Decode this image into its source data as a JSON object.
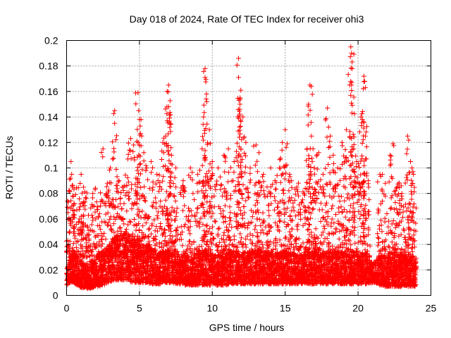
{
  "chart_data": {
    "type": "scatter",
    "title": "Day 018 of 2024, Rate Of TEC Index for receiver ohi3",
    "xlabel": "GPS time / hours",
    "ylabel": "ROTI / TECUs",
    "xlim": [
      0,
      25
    ],
    "ylim": [
      0,
      0.2
    ],
    "xticks": [
      "0",
      "5",
      "10",
      "15",
      "20",
      "25"
    ],
    "yticks": [
      "0",
      "0.02",
      "0.04",
      "0.06",
      "0.08",
      "0.1",
      "0.12",
      "0.14",
      "0.16",
      "0.18",
      "0.2"
    ],
    "grid": true,
    "marker": "+",
    "color": "#ff0000",
    "series": [
      {
        "points": [
          [
            0.1,
            0.065
          ],
          [
            0.2,
            0.05
          ],
          [
            0.3,
            0.105
          ],
          [
            0.35,
            0.095
          ],
          [
            0.4,
            0.085
          ],
          [
            0.45,
            0.078
          ],
          [
            0.9,
            0.06
          ],
          [
            1.0,
            0.095
          ],
          [
            1.1,
            0.072
          ],
          [
            1.3,
            0.055
          ],
          [
            1.8,
            0.08
          ],
          [
            2.0,
            0.06
          ],
          [
            2.5,
            0.115
          ],
          [
            2.8,
            0.088
          ],
          [
            3.0,
            0.1
          ],
          [
            3.3,
            0.145
          ],
          [
            3.3,
            0.135
          ],
          [
            3.6,
            0.09
          ],
          [
            3.9,
            0.085
          ],
          [
            4.2,
            0.107
          ],
          [
            4.4,
            0.123
          ],
          [
            4.6,
            0.118
          ],
          [
            4.9,
            0.159
          ],
          [
            4.95,
            0.145
          ],
          [
            5.0,
            0.138
          ],
          [
            5.3,
            0.112
          ],
          [
            5.5,
            0.1
          ],
          [
            5.8,
            0.105
          ],
          [
            6.2,
            0.095
          ],
          [
            6.6,
            0.12
          ],
          [
            6.8,
            0.125
          ],
          [
            6.9,
            0.16
          ],
          [
            7.0,
            0.165
          ],
          [
            7.0,
            0.148
          ],
          [
            7.1,
            0.135
          ],
          [
            7.2,
            0.11
          ],
          [
            7.5,
            0.1
          ],
          [
            8.0,
            0.09
          ],
          [
            8.5,
            0.1
          ],
          [
            9.0,
            0.095
          ],
          [
            9.3,
            0.115
          ],
          [
            9.4,
            0.14
          ],
          [
            9.5,
            0.178
          ],
          [
            9.5,
            0.171
          ],
          [
            9.6,
            0.158
          ],
          [
            9.8,
            0.13
          ],
          [
            10.0,
            0.105
          ],
          [
            10.4,
            0.1
          ],
          [
            10.8,
            0.11
          ],
          [
            11.1,
            0.115
          ],
          [
            11.5,
            0.105
          ],
          [
            11.8,
            0.186
          ],
          [
            11.8,
            0.171
          ],
          [
            11.9,
            0.155
          ],
          [
            11.9,
            0.15
          ],
          [
            12.1,
            0.14
          ],
          [
            12.3,
            0.12
          ],
          [
            12.6,
            0.1
          ],
          [
            13.0,
            0.118
          ],
          [
            13.2,
            0.112
          ],
          [
            13.5,
            0.095
          ],
          [
            14.0,
            0.1
          ],
          [
            14.3,
            0.09
          ],
          [
            14.6,
            0.1
          ],
          [
            14.8,
            0.12
          ],
          [
            15.0,
            0.13
          ],
          [
            15.3,
            0.095
          ],
          [
            15.8,
            0.085
          ],
          [
            16.2,
            0.075
          ],
          [
            16.5,
            0.115
          ],
          [
            16.6,
            0.15
          ],
          [
            16.7,
            0.165
          ],
          [
            16.8,
            0.125
          ],
          [
            17.0,
            0.1
          ],
          [
            17.3,
            0.112
          ],
          [
            17.6,
            0.095
          ],
          [
            17.9,
            0.147
          ],
          [
            18.1,
            0.125
          ],
          [
            18.3,
            0.11
          ],
          [
            18.6,
            0.1
          ],
          [
            18.9,
            0.12
          ],
          [
            19.2,
            0.13
          ],
          [
            19.5,
            0.195
          ],
          [
            19.55,
            0.19
          ],
          [
            19.6,
            0.178
          ],
          [
            19.7,
            0.115
          ],
          [
            19.9,
            0.105
          ],
          [
            20.2,
            0.14
          ],
          [
            20.3,
            0.138
          ],
          [
            20.4,
            0.172
          ],
          [
            20.45,
            0.168
          ],
          [
            20.5,
            0.125
          ],
          [
            20.7,
            0.09
          ],
          [
            21.5,
            0.095
          ],
          [
            22.2,
            0.11
          ],
          [
            22.4,
            0.119
          ],
          [
            22.7,
            0.085
          ],
          [
            23.0,
            0.08
          ],
          [
            23.4,
            0.125
          ],
          [
            23.6,
            0.105
          ],
          [
            23.7,
            0.1
          ],
          [
            23.8,
            0.095
          ]
        ]
      }
    ],
    "bands": [
      [
        0.0,
        0.008,
        0.02
      ],
      [
        0.25,
        0.01,
        0.03
      ],
      [
        0.5,
        0.01,
        0.035
      ],
      [
        0.75,
        0.008,
        0.03
      ],
      [
        1.0,
        0.006,
        0.028
      ],
      [
        1.25,
        0.006,
        0.025
      ],
      [
        1.5,
        0.005,
        0.026
      ],
      [
        1.75,
        0.006,
        0.028
      ],
      [
        2.0,
        0.006,
        0.03
      ],
      [
        2.25,
        0.007,
        0.032
      ],
      [
        2.5,
        0.008,
        0.035
      ],
      [
        2.75,
        0.009,
        0.038
      ],
      [
        3.0,
        0.01,
        0.04
      ],
      [
        3.25,
        0.012,
        0.045
      ],
      [
        3.5,
        0.012,
        0.048
      ],
      [
        3.75,
        0.012,
        0.05
      ],
      [
        4.0,
        0.012,
        0.05
      ],
      [
        4.25,
        0.012,
        0.048
      ],
      [
        4.5,
        0.01,
        0.046
      ],
      [
        4.75,
        0.01,
        0.045
      ],
      [
        5.0,
        0.01,
        0.044
      ],
      [
        5.25,
        0.01,
        0.042
      ],
      [
        5.5,
        0.01,
        0.04
      ],
      [
        5.75,
        0.009,
        0.038
      ],
      [
        6.0,
        0.009,
        0.036
      ],
      [
        6.25,
        0.009,
        0.035
      ],
      [
        6.5,
        0.009,
        0.035
      ],
      [
        6.75,
        0.01,
        0.036
      ],
      [
        7.0,
        0.01,
        0.036
      ],
      [
        7.25,
        0.01,
        0.034
      ],
      [
        7.5,
        0.009,
        0.032
      ],
      [
        7.75,
        0.009,
        0.03
      ],
      [
        8.0,
        0.008,
        0.03
      ],
      [
        8.25,
        0.008,
        0.03
      ],
      [
        8.5,
        0.008,
        0.03
      ],
      [
        8.75,
        0.008,
        0.03
      ],
      [
        9.0,
        0.008,
        0.032
      ],
      [
        9.25,
        0.008,
        0.035
      ],
      [
        9.5,
        0.008,
        0.036
      ],
      [
        9.75,
        0.008,
        0.035
      ],
      [
        10.0,
        0.008,
        0.033
      ],
      [
        10.25,
        0.008,
        0.032
      ],
      [
        10.5,
        0.008,
        0.032
      ],
      [
        10.75,
        0.008,
        0.032
      ],
      [
        11.0,
        0.008,
        0.033
      ],
      [
        11.25,
        0.009,
        0.035
      ],
      [
        11.5,
        0.009,
        0.035
      ],
      [
        11.75,
        0.009,
        0.035
      ],
      [
        12.0,
        0.009,
        0.034
      ],
      [
        12.25,
        0.009,
        0.034
      ],
      [
        12.5,
        0.009,
        0.034
      ],
      [
        12.75,
        0.009,
        0.035
      ],
      [
        13.0,
        0.009,
        0.036
      ],
      [
        13.25,
        0.009,
        0.036
      ],
      [
        13.5,
        0.009,
        0.035
      ],
      [
        13.75,
        0.009,
        0.034
      ],
      [
        14.0,
        0.009,
        0.034
      ],
      [
        14.25,
        0.009,
        0.034
      ],
      [
        14.5,
        0.009,
        0.034
      ],
      [
        14.75,
        0.009,
        0.035
      ],
      [
        15.0,
        0.009,
        0.035
      ],
      [
        15.25,
        0.009,
        0.034
      ],
      [
        15.5,
        0.009,
        0.033
      ],
      [
        15.75,
        0.009,
        0.032
      ],
      [
        16.0,
        0.009,
        0.032
      ],
      [
        16.25,
        0.009,
        0.033
      ],
      [
        16.5,
        0.009,
        0.035
      ],
      [
        16.75,
        0.009,
        0.035
      ],
      [
        17.0,
        0.009,
        0.034
      ],
      [
        17.25,
        0.009,
        0.034
      ],
      [
        17.5,
        0.009,
        0.034
      ],
      [
        17.75,
        0.009,
        0.034
      ],
      [
        18.0,
        0.009,
        0.035
      ],
      [
        18.25,
        0.009,
        0.035
      ],
      [
        18.5,
        0.009,
        0.034
      ],
      [
        18.75,
        0.009,
        0.034
      ],
      [
        19.0,
        0.009,
        0.034
      ],
      [
        19.25,
        0.009,
        0.035
      ],
      [
        19.5,
        0.009,
        0.035
      ],
      [
        19.75,
        0.009,
        0.035
      ],
      [
        20.0,
        0.009,
        0.035
      ],
      [
        20.25,
        0.009,
        0.034
      ],
      [
        20.5,
        0.009,
        0.033
      ],
      [
        20.75,
        0.009,
        0.03
      ],
      [
        21.0,
        0.01,
        0.025
      ],
      [
        21.25,
        0.01,
        0.028
      ],
      [
        21.5,
        0.008,
        0.03
      ],
      [
        21.75,
        0.007,
        0.03
      ],
      [
        22.0,
        0.007,
        0.03
      ],
      [
        22.25,
        0.007,
        0.03
      ],
      [
        22.5,
        0.007,
        0.03
      ],
      [
        22.75,
        0.007,
        0.03
      ],
      [
        23.0,
        0.007,
        0.03
      ],
      [
        23.25,
        0.007,
        0.03
      ],
      [
        23.5,
        0.007,
        0.03
      ],
      [
        23.75,
        0.007,
        0.03
      ],
      [
        24.0,
        0.007,
        0.03
      ]
    ]
  }
}
